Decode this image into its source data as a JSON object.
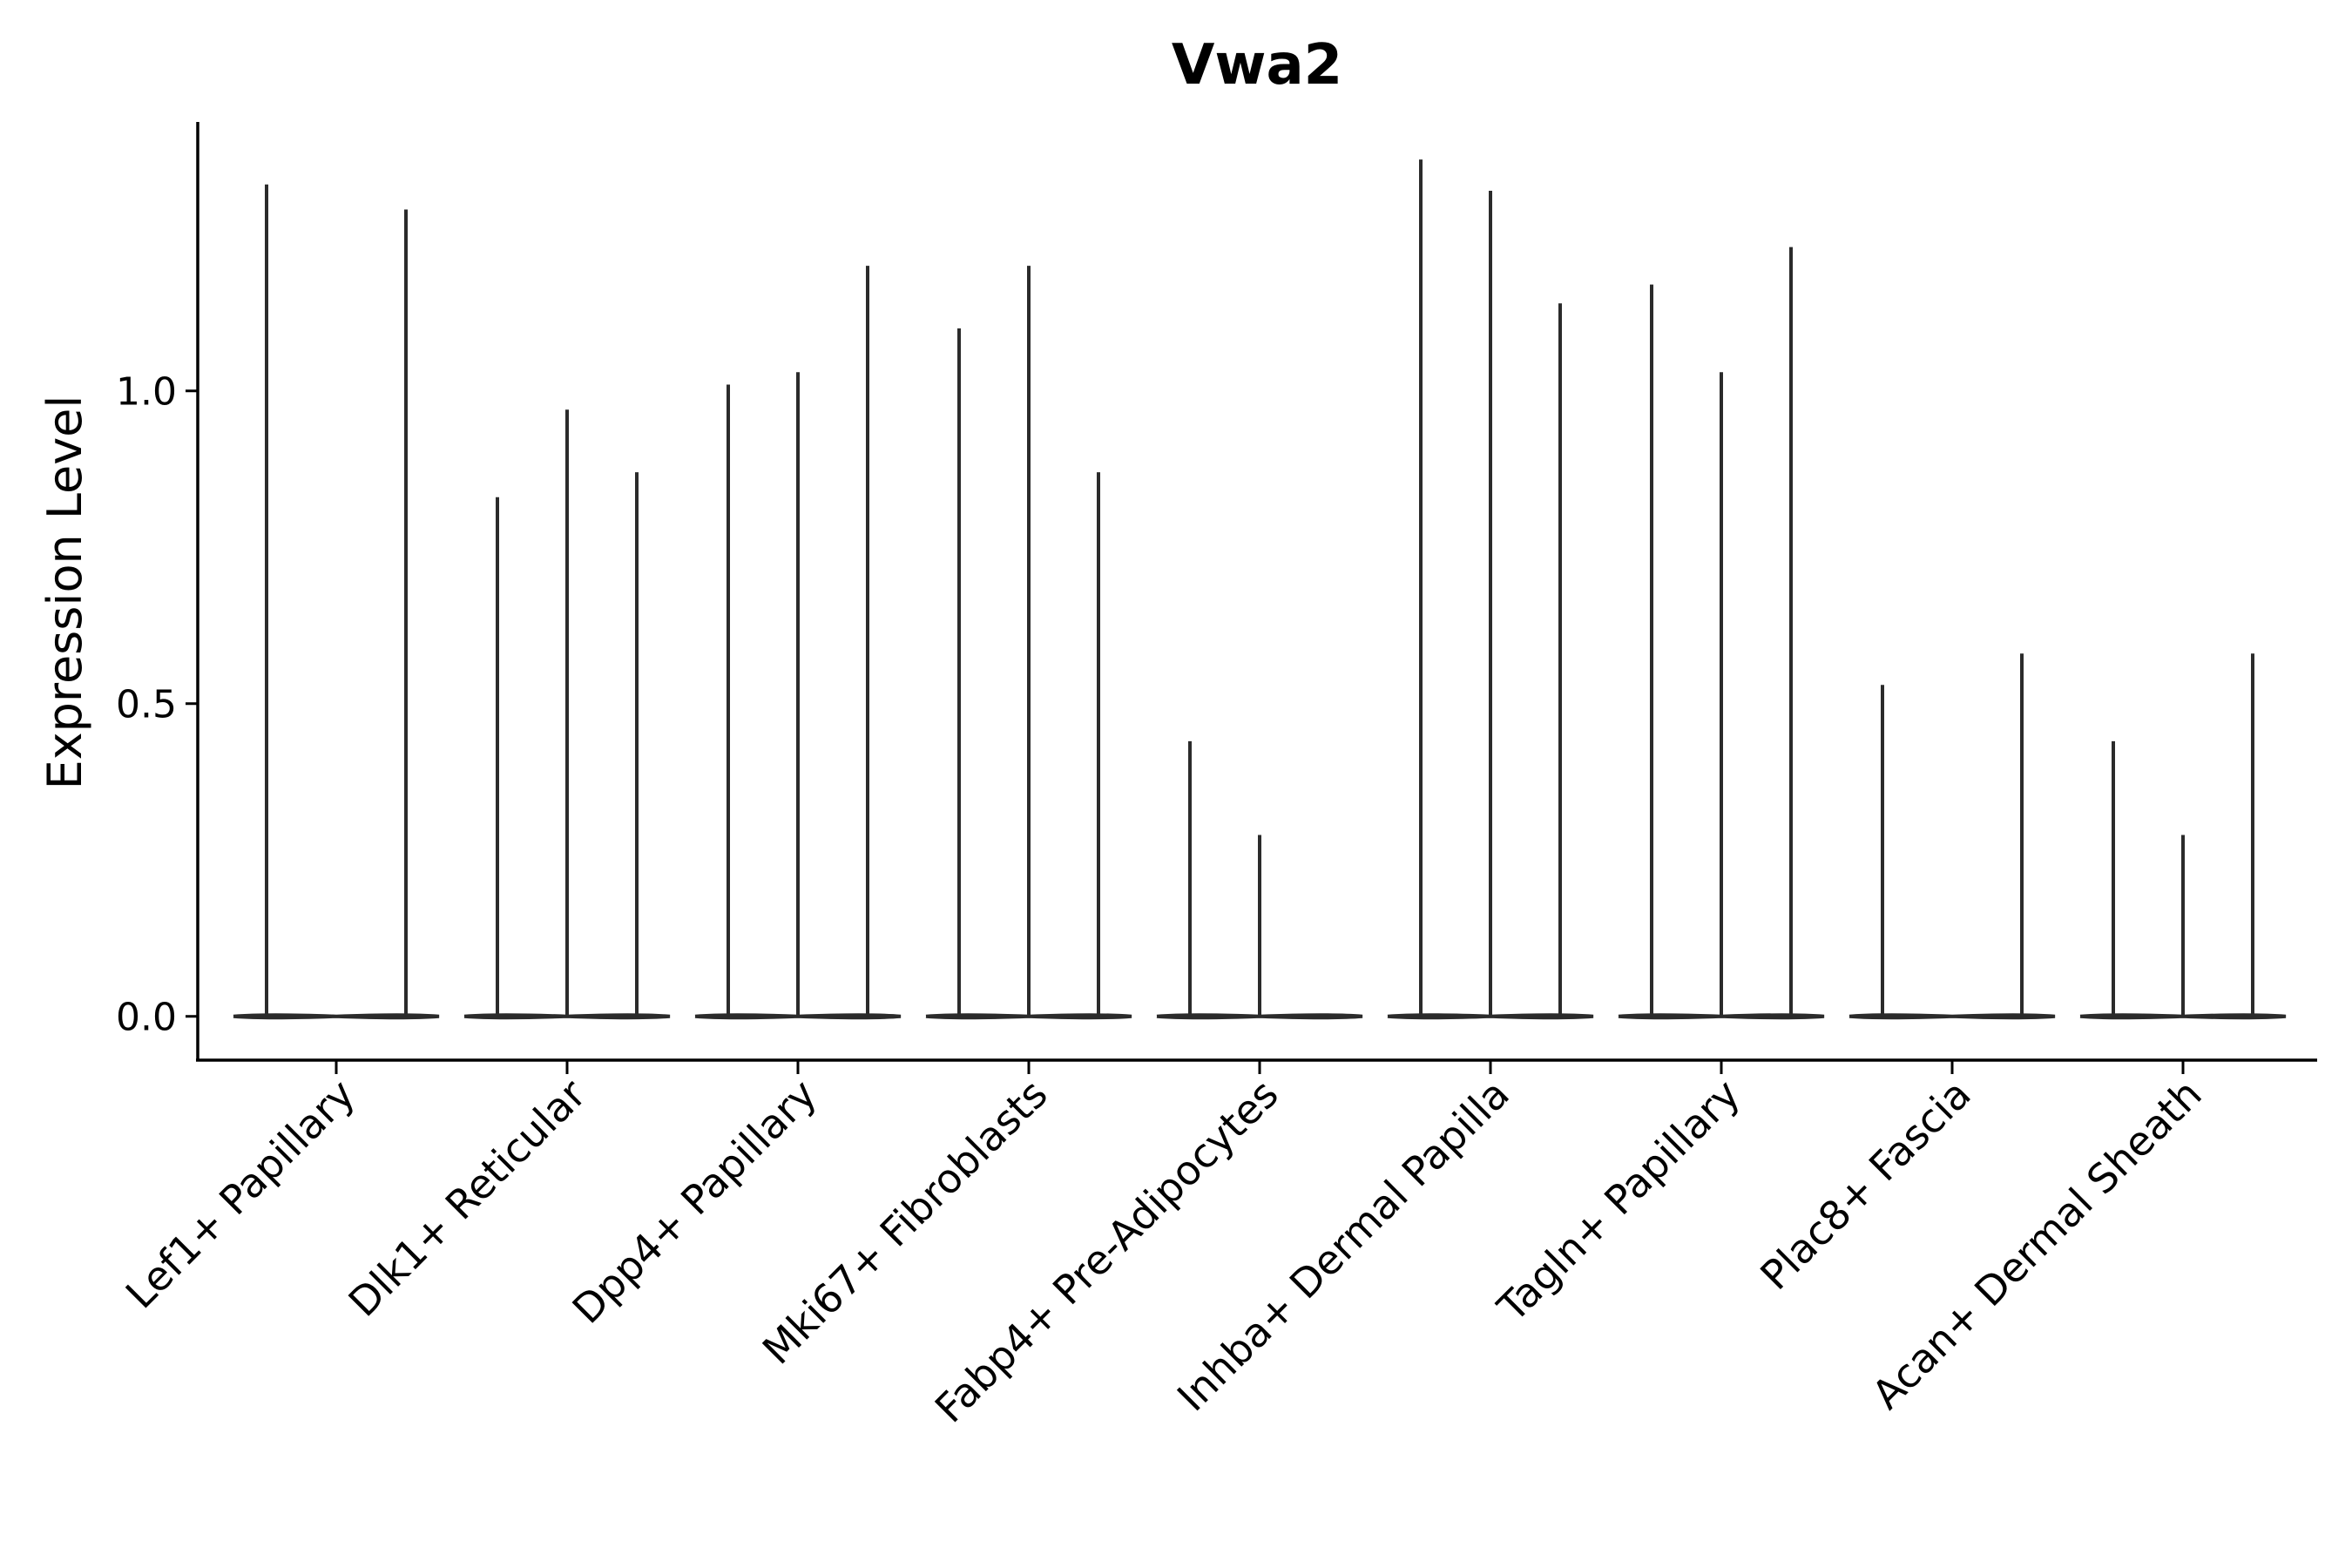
{
  "chart_data": {
    "type": "violin",
    "title": "Vwa2",
    "xlabel": "",
    "ylabel": "Expression Level",
    "ylim": [
      -0.07,
      1.43
    ],
    "yticks": [
      0.0,
      0.5,
      1.0
    ],
    "ytick_labels": [
      "0.0",
      "0.5",
      "1.0"
    ],
    "grid": false,
    "categories": [
      "Lef1+ Papillary",
      "Dlk1+ Reticular",
      "Dpp4+ Papillary",
      "Mki67+ Fibroblasts",
      "Fabp4+ Pre-Adipocytes",
      "Inhba+ Dermal Papilla",
      "Tagln+ Papillary",
      "Plac8+ Fascia",
      "Acan+ Dermal Sheath"
    ],
    "max_values": [
      [
        1.33,
        null,
        1.29
      ],
      [
        0.83,
        0.97,
        0.87
      ],
      [
        1.01,
        1.03,
        1.2
      ],
      [
        1.1,
        1.2,
        0.87
      ],
      [
        0.44,
        0.29,
        null
      ],
      [
        1.37,
        1.32,
        1.14
      ],
      [
        1.17,
        1.03,
        1.23
      ],
      [
        0.53,
        null,
        0.58
      ],
      [
        0.44,
        0.29,
        0.58
      ]
    ]
  }
}
